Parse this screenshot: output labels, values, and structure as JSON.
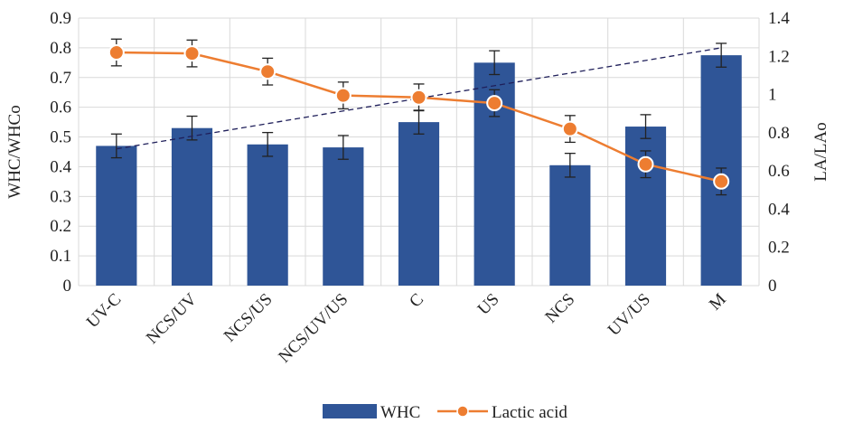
{
  "chart_data": {
    "type": "bar",
    "categories": [
      "UV-C",
      "NCS/UV",
      "NCS/US",
      "NCS/UV/US",
      "C",
      "US",
      "NCS",
      "UV/US",
      "M"
    ],
    "series": [
      {
        "name": "WHC",
        "type": "bar",
        "axis": "left",
        "values": [
          0.47,
          0.53,
          0.475,
          0.465,
          0.55,
          0.75,
          0.405,
          0.535,
          0.775
        ],
        "errors": [
          0.04,
          0.04,
          0.04,
          0.04,
          0.04,
          0.04,
          0.04,
          0.04,
          0.04
        ],
        "color": "#2f5597"
      },
      {
        "name": "Lactic acid",
        "type": "line",
        "axis": "right",
        "values": [
          1.22,
          1.215,
          1.12,
          0.995,
          0.985,
          0.955,
          0.82,
          0.635,
          0.545
        ],
        "errors": [
          0.07,
          0.07,
          0.07,
          0.07,
          0.07,
          0.07,
          0.07,
          0.07,
          0.07
        ],
        "color": "#ed7d31"
      }
    ],
    "trendline": {
      "series": "WHC",
      "from": 0.46,
      "to": 0.8,
      "color": "#1f1f5a",
      "style": "dashed"
    },
    "ylabel": "WHC/WHCo",
    "y2label": "LA/LAo",
    "ylim": [
      0,
      0.9
    ],
    "yticks": [
      "0",
      "0.1",
      "0.2",
      "0.3",
      "0.4",
      "0.5",
      "0.6",
      "0.7",
      "0.8",
      "0.9"
    ],
    "y2lim": [
      0,
      1.4
    ],
    "y2ticks": [
      "0",
      "0.2",
      "0.4",
      "0.6",
      "0.8",
      "1",
      "1.2",
      "1.4"
    ],
    "grid": true,
    "legend_position": "bottom"
  }
}
